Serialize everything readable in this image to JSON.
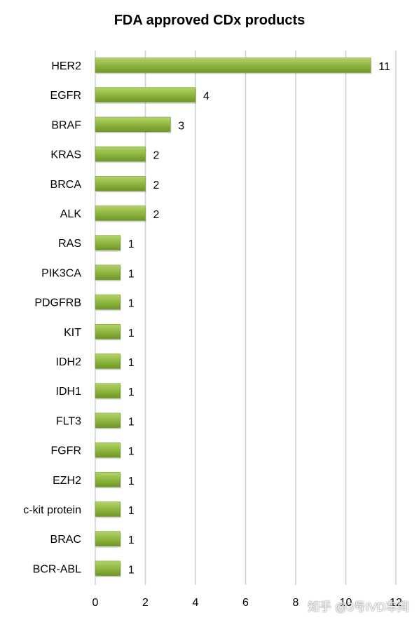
{
  "chart_data": {
    "type": "bar",
    "orientation": "horizontal",
    "title": "FDA approved CDx products",
    "categories": [
      "HER2",
      "EGFR",
      "BRAF",
      "KRAS",
      "BRCA",
      "ALK",
      "RAS",
      "PIK3CA",
      "PDGFRB",
      "KIT",
      "IDH2",
      "IDH1",
      "FLT3",
      "FGFR",
      "EZH2",
      "c-kit protein",
      "BRAC",
      "BCR-ABL"
    ],
    "values": [
      11,
      4,
      3,
      2,
      2,
      2,
      1,
      1,
      1,
      1,
      1,
      1,
      1,
      1,
      1,
      1,
      1,
      1
    ],
    "xlim": [
      0,
      12
    ],
    "xticks": [
      0,
      2,
      4,
      6,
      8,
      10,
      12
    ],
    "grid": true,
    "bar_color": "#8cb43c",
    "grid_color": "#c5d3e0",
    "data_labels": true
  },
  "watermark": "知乎 @3号IVD车间"
}
